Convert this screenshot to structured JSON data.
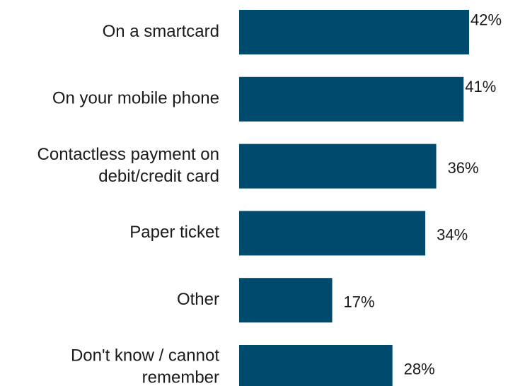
{
  "chart_data": {
    "type": "bar",
    "orientation": "horizontal",
    "categories": [
      [
        "On a smartcard"
      ],
      [
        "On your mobile phone"
      ],
      [
        "Contactless payment on",
        "debit/credit card"
      ],
      [
        "Paper ticket"
      ],
      [
        "Other"
      ],
      [
        "Don't know / cannot",
        "remember"
      ]
    ],
    "values": [
      42,
      41,
      36,
      34,
      17,
      28
    ],
    "value_labels": [
      "42%",
      "41%",
      "36%",
      "34%",
      "17%",
      "28%"
    ],
    "unit": "%",
    "title": "",
    "xlabel": "",
    "ylabel": "",
    "xlim": [
      0,
      42
    ],
    "grid": false,
    "legend": "none",
    "colors": {
      "bar": "#004a6e",
      "text": "#1a1a1a",
      "background": "#ffffff"
    }
  }
}
